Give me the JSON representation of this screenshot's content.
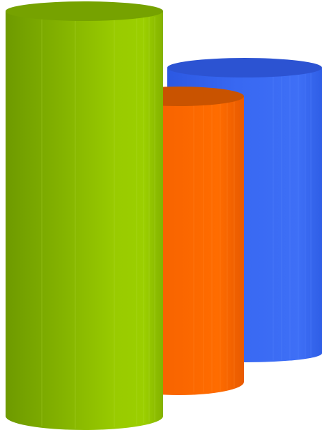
{
  "scene": {
    "background": "#ffffff",
    "cylinders": [
      {
        "name": "blue",
        "color": "#3a66f0",
        "top_color": "#2f55cf"
      },
      {
        "name": "orange",
        "color": "#fb6500",
        "top_color": "#cf5400"
      },
      {
        "name": "green",
        "color": "#8cc000",
        "top_color": "#74a000"
      }
    ]
  }
}
